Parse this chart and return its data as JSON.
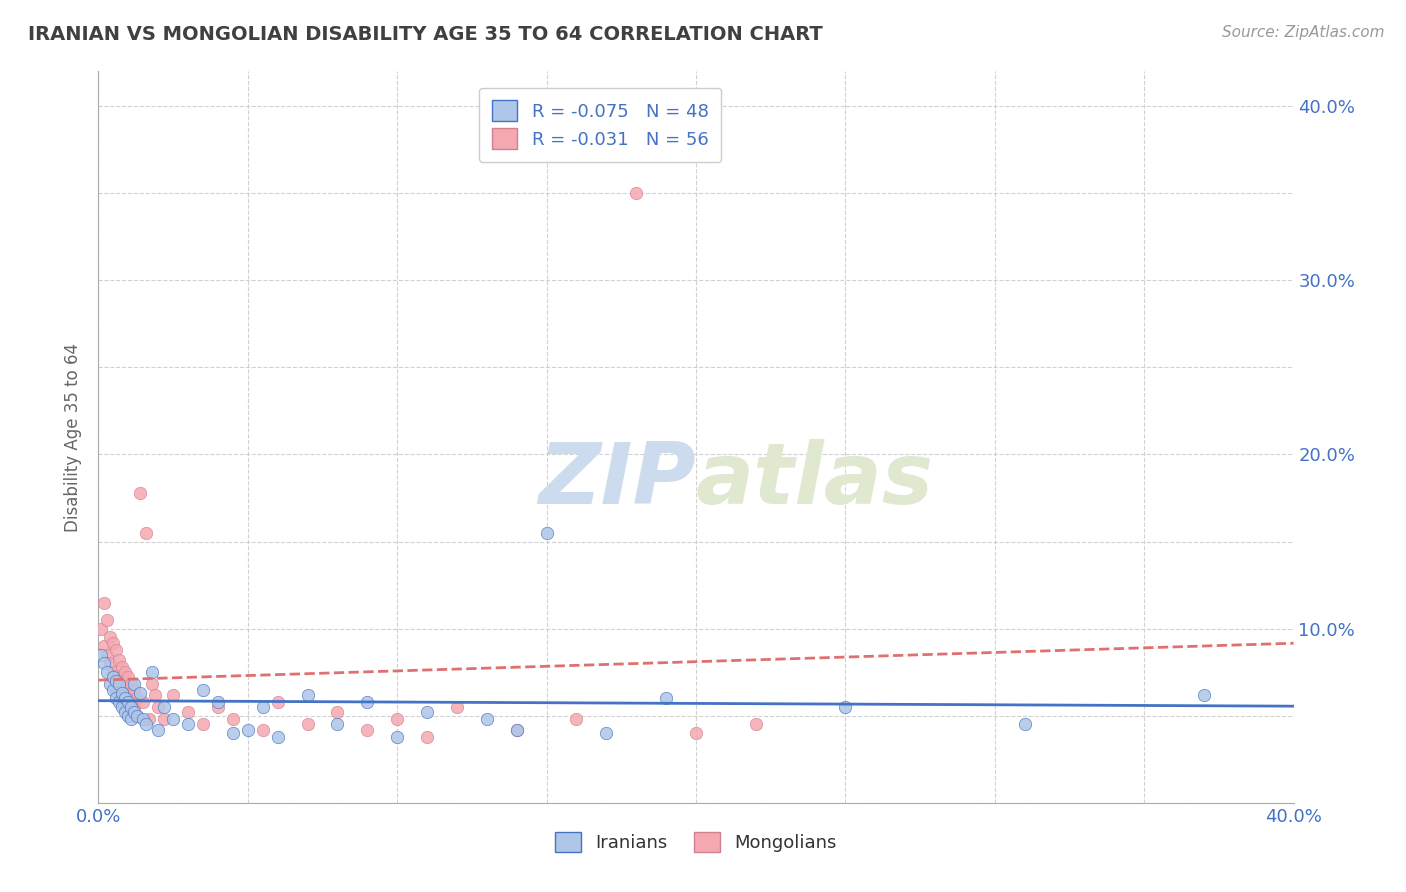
{
  "title": "IRANIAN VS MONGOLIAN DISABILITY AGE 35 TO 64 CORRELATION CHART",
  "source_text": "Source: ZipAtlas.com",
  "ylabel": "Disability Age 35 to 64",
  "xlim": [
    0.0,
    0.4
  ],
  "ylim": [
    0.0,
    0.42
  ],
  "xticks": [
    0.0,
    0.05,
    0.1,
    0.15,
    0.2,
    0.25,
    0.3,
    0.35,
    0.4
  ],
  "yticks": [
    0.0,
    0.05,
    0.1,
    0.15,
    0.2,
    0.25,
    0.3,
    0.35,
    0.4
  ],
  "xticklabels": [
    "0.0%",
    "",
    "",
    "",
    "",
    "",
    "",
    "",
    "40.0%"
  ],
  "yticklabels_right": [
    "",
    "",
    "10.0%",
    "",
    "20.0%",
    "",
    "30.0%",
    "",
    "40.0%"
  ],
  "iranian_R": -0.075,
  "iranian_N": 48,
  "mongolian_R": -0.031,
  "mongolian_N": 56,
  "iranian_color": "#aec6e8",
  "mongolian_color": "#f4a8b0",
  "iranian_line_color": "#4472c4",
  "mongolian_line_color": "#e07070",
  "background_color": "#ffffff",
  "grid_color": "#cccccc",
  "title_color": "#404040",
  "axis_label_color": "#4472c4",
  "watermark_color": "#ccdcee",
  "iranians_x": [
    0.001,
    0.002,
    0.003,
    0.004,
    0.005,
    0.005,
    0.006,
    0.006,
    0.007,
    0.007,
    0.008,
    0.008,
    0.009,
    0.009,
    0.01,
    0.01,
    0.011,
    0.011,
    0.012,
    0.012,
    0.013,
    0.014,
    0.015,
    0.016,
    0.018,
    0.02,
    0.022,
    0.025,
    0.03,
    0.035,
    0.04,
    0.045,
    0.05,
    0.055,
    0.06,
    0.07,
    0.08,
    0.09,
    0.1,
    0.11,
    0.13,
    0.14,
    0.15,
    0.17,
    0.19,
    0.25,
    0.31,
    0.37
  ],
  "iranians_y": [
    0.085,
    0.08,
    0.075,
    0.068,
    0.072,
    0.065,
    0.07,
    0.06,
    0.068,
    0.058,
    0.063,
    0.055,
    0.06,
    0.052,
    0.058,
    0.05,
    0.055,
    0.048,
    0.052,
    0.068,
    0.05,
    0.063,
    0.048,
    0.045,
    0.075,
    0.042,
    0.055,
    0.048,
    0.045,
    0.065,
    0.058,
    0.04,
    0.042,
    0.055,
    0.038,
    0.062,
    0.045,
    0.058,
    0.038,
    0.052,
    0.048,
    0.042,
    0.155,
    0.04,
    0.06,
    0.055,
    0.045,
    0.062
  ],
  "mongolians_x": [
    0.001,
    0.002,
    0.002,
    0.003,
    0.003,
    0.004,
    0.004,
    0.005,
    0.005,
    0.006,
    0.006,
    0.006,
    0.007,
    0.007,
    0.007,
    0.008,
    0.008,
    0.008,
    0.009,
    0.009,
    0.009,
    0.01,
    0.01,
    0.01,
    0.011,
    0.011,
    0.012,
    0.012,
    0.013,
    0.013,
    0.014,
    0.015,
    0.016,
    0.017,
    0.018,
    0.019,
    0.02,
    0.022,
    0.025,
    0.03,
    0.035,
    0.04,
    0.045,
    0.055,
    0.06,
    0.07,
    0.08,
    0.09,
    0.1,
    0.11,
    0.12,
    0.14,
    0.16,
    0.18,
    0.2,
    0.22
  ],
  "mongolians_y": [
    0.1,
    0.115,
    0.09,
    0.105,
    0.085,
    0.095,
    0.08,
    0.092,
    0.075,
    0.088,
    0.073,
    0.065,
    0.082,
    0.07,
    0.062,
    0.078,
    0.068,
    0.058,
    0.075,
    0.065,
    0.055,
    0.072,
    0.062,
    0.052,
    0.068,
    0.058,
    0.065,
    0.055,
    0.06,
    0.05,
    0.178,
    0.058,
    0.155,
    0.048,
    0.068,
    0.062,
    0.055,
    0.048,
    0.062,
    0.052,
    0.045,
    0.055,
    0.048,
    0.042,
    0.058,
    0.045,
    0.052,
    0.042,
    0.048,
    0.038,
    0.055,
    0.042,
    0.048,
    0.35,
    0.04,
    0.045
  ]
}
